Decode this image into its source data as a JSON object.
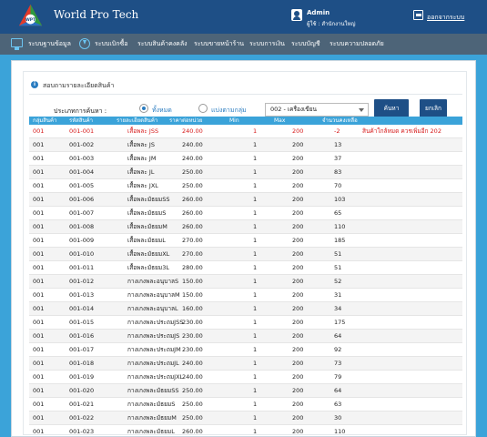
{
  "header": {
    "brand": "World Pro Tech",
    "logo_text": "WPT",
    "user_name": "Admin",
    "user_branch": "ผู้ใช้ : สำนักงานใหญ่",
    "logout_label": "ออกจากระบบ"
  },
  "menu": {
    "items": [
      {
        "label": "ระบบฐานข้อมูล",
        "icon": "monitor-icon"
      },
      {
        "label": "ระบบเบิกซื้อ",
        "icon": "download-icon"
      },
      {
        "label": "ระบบสินค้าคงคลัง"
      },
      {
        "label": "ระบบขายหน้าร้าน"
      },
      {
        "label": "ระบบการเงิน"
      },
      {
        "label": "ระบบบัญชี"
      },
      {
        "label": "ระบบความปลอดภัย"
      }
    ]
  },
  "panel": {
    "title": "สอบถามรายละเอียดสินค้า"
  },
  "search": {
    "label": "ประเภทการค้นหา :",
    "option_all": "ทั้งหมด",
    "option_group": "แบ่งตามกลุ่ม",
    "selected_option": "all",
    "group_value": "002 - เครื่องเขียน",
    "search_button": "ค้นหา",
    "cancel_button": "ยกเลิก"
  },
  "table": {
    "columns": [
      "กลุ่มสินค้า",
      "รหัสสินค้า",
      "รายละเอียดสินค้า",
      "ราคาต่อหน่วย",
      "Min",
      "Max",
      "จำนวนคงเหลือ",
      ""
    ],
    "rows": [
      {
        "group": "001",
        "code": "001-001",
        "desc": "เสื้อพละ JSS",
        "price": "240.00",
        "min": "1",
        "max": "200",
        "qty": "-2",
        "note": "สินค้าใกล้หมด ควรเพิ่มอีก 202",
        "warn": true
      },
      {
        "group": "001",
        "code": "001-002",
        "desc": "เสื้อพละ JS",
        "price": "240.00",
        "min": "1",
        "max": "200",
        "qty": "13",
        "note": ""
      },
      {
        "group": "001",
        "code": "001-003",
        "desc": "เสื้อพละ JM",
        "price": "240.00",
        "min": "1",
        "max": "200",
        "qty": "37",
        "note": ""
      },
      {
        "group": "001",
        "code": "001-004",
        "desc": "เสื้อพละ JL",
        "price": "250.00",
        "min": "1",
        "max": "200",
        "qty": "83",
        "note": ""
      },
      {
        "group": "001",
        "code": "001-005",
        "desc": "เสื้อพละ JXL",
        "price": "250.00",
        "min": "1",
        "max": "200",
        "qty": "70",
        "note": ""
      },
      {
        "group": "001",
        "code": "001-006",
        "desc": "เสื้อพละมัธยมSS",
        "price": "260.00",
        "min": "1",
        "max": "200",
        "qty": "103",
        "note": ""
      },
      {
        "group": "001",
        "code": "001-007",
        "desc": "เสื้อพละมัธยมS",
        "price": "260.00",
        "min": "1",
        "max": "200",
        "qty": "65",
        "note": ""
      },
      {
        "group": "001",
        "code": "001-008",
        "desc": "เสื้อพละมัธยมM",
        "price": "260.00",
        "min": "1",
        "max": "200",
        "qty": "110",
        "note": ""
      },
      {
        "group": "001",
        "code": "001-009",
        "desc": "เสื้อพละมัธยมL",
        "price": "270.00",
        "min": "1",
        "max": "200",
        "qty": "185",
        "note": ""
      },
      {
        "group": "001",
        "code": "001-010",
        "desc": "เสื้อพละมัธยมXL",
        "price": "270.00",
        "min": "1",
        "max": "200",
        "qty": "51",
        "note": ""
      },
      {
        "group": "001",
        "code": "001-011",
        "desc": "เสื้อพละมัธยม3L",
        "price": "280.00",
        "min": "1",
        "max": "200",
        "qty": "51",
        "note": ""
      },
      {
        "group": "001",
        "code": "001-012",
        "desc": "กางเกงพละอนุบาลS",
        "price": "150.00",
        "min": "1",
        "max": "200",
        "qty": "52",
        "note": ""
      },
      {
        "group": "001",
        "code": "001-013",
        "desc": "กางเกงพละอนุบาลM",
        "price": "150.00",
        "min": "1",
        "max": "200",
        "qty": "31",
        "note": ""
      },
      {
        "group": "001",
        "code": "001-014",
        "desc": "กางเกงพละอนุบาลL",
        "price": "160.00",
        "min": "1",
        "max": "200",
        "qty": "34",
        "note": ""
      },
      {
        "group": "001",
        "code": "001-015",
        "desc": "กางเกงพละประถมJSS",
        "price": "230.00",
        "min": "1",
        "max": "200",
        "qty": "175",
        "note": ""
      },
      {
        "group": "001",
        "code": "001-016",
        "desc": "กางเกงพละประถมJS",
        "price": "230.00",
        "min": "1",
        "max": "200",
        "qty": "64",
        "note": ""
      },
      {
        "group": "001",
        "code": "001-017",
        "desc": "กางเกงพละประถมJM",
        "price": "230.00",
        "min": "1",
        "max": "200",
        "qty": "92",
        "note": ""
      },
      {
        "group": "001",
        "code": "001-018",
        "desc": "กางเกงพละประถมJL",
        "price": "240.00",
        "min": "1",
        "max": "200",
        "qty": "73",
        "note": ""
      },
      {
        "group": "001",
        "code": "001-019",
        "desc": "กางเกงพละประถมJXL",
        "price": "240.00",
        "min": "1",
        "max": "200",
        "qty": "79",
        "note": ""
      },
      {
        "group": "001",
        "code": "001-020",
        "desc": "กางเกงพละมัธยมSS",
        "price": "250.00",
        "min": "1",
        "max": "200",
        "qty": "64",
        "note": ""
      },
      {
        "group": "001",
        "code": "001-021",
        "desc": "กางเกงพละมัธยมS",
        "price": "250.00",
        "min": "1",
        "max": "200",
        "qty": "63",
        "note": ""
      },
      {
        "group": "001",
        "code": "001-022",
        "desc": "กางเกงพละมัธยมM",
        "price": "250.00",
        "min": "1",
        "max": "200",
        "qty": "30",
        "note": ""
      },
      {
        "group": "001",
        "code": "001-023",
        "desc": "กางเกงพละมัธยมL",
        "price": "260.00",
        "min": "1",
        "max": "200",
        "qty": "110",
        "note": ""
      }
    ]
  },
  "colors": {
    "header_bg": "#1e4f86",
    "menu_bg": "#4d6478",
    "page_bg": "#3ba3d9",
    "grid_header": "#3ba3d9",
    "warn_text": "#d61a1a",
    "button": "#1e4f86"
  }
}
